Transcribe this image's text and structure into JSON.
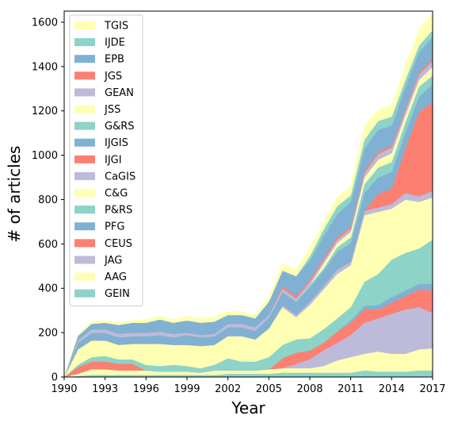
{
  "chart_data": {
    "type": "area",
    "stacked": true,
    "xlabel": "Year",
    "ylabel": "# of articles",
    "xlim": [
      1990,
      2017
    ],
    "ylim": [
      0,
      1650
    ],
    "x_ticks": [
      1990,
      1993,
      1996,
      1999,
      2002,
      2005,
      2008,
      2011,
      2014,
      2017
    ],
    "y_ticks": [
      0,
      200,
      400,
      600,
      800,
      1000,
      1200,
      1400,
      1600
    ],
    "grid": false,
    "legend_position": "top-left",
    "legend_order": [
      "TGIS",
      "IJDE",
      "EPB",
      "JGS",
      "GEAN",
      "JSS",
      "G&RS",
      "IJGIS",
      "IJGI",
      "CaGIS",
      "C&G",
      "P&RS",
      "PFG",
      "CEUS",
      "JAG",
      "AAG",
      "GEIN"
    ],
    "years": [
      1990,
      1991,
      1992,
      1993,
      1994,
      1995,
      1996,
      1997,
      1998,
      1999,
      2000,
      2001,
      2002,
      2003,
      2004,
      2005,
      2006,
      2007,
      2008,
      2009,
      2010,
      2011,
      2012,
      2013,
      2014,
      2015,
      2016,
      2017
    ],
    "series": [
      {
        "name": "GEIN",
        "color": "#8dd3c7",
        "values": [
          0,
          5,
          10,
          10,
          10,
          10,
          10,
          10,
          10,
          10,
          10,
          10,
          15,
          15,
          15,
          15,
          20,
          20,
          20,
          20,
          20,
          20,
          30,
          25,
          25,
          25,
          30,
          30
        ]
      },
      {
        "name": "AAG",
        "color": "#ffffb3",
        "values": [
          0,
          10,
          25,
          25,
          20,
          20,
          20,
          15,
          15,
          15,
          10,
          20,
          15,
          15,
          15,
          20,
          20,
          20,
          20,
          30,
          55,
          70,
          75,
          90,
          80,
          80,
          95,
          100
        ]
      },
      {
        "name": "JAG",
        "color": "#bebada",
        "values": [
          0,
          0,
          0,
          0,
          0,
          0,
          0,
          0,
          0,
          0,
          0,
          0,
          0,
          0,
          0,
          0,
          0,
          20,
          40,
          70,
          80,
          100,
          140,
          150,
          180,
          200,
          190,
          160
        ]
      },
      {
        "name": "CEUS",
        "color": "#fb8072",
        "values": [
          0,
          30,
          35,
          35,
          30,
          30,
          0,
          0,
          0,
          0,
          0,
          0,
          0,
          0,
          0,
          0,
          45,
          50,
          40,
          35,
          50,
          55,
          60,
          40,
          50,
          60,
          80,
          100
        ]
      },
      {
        "name": "PFG",
        "color": "#80b1d3",
        "values": [
          0,
          0,
          0,
          0,
          0,
          0,
          0,
          0,
          0,
          0,
          0,
          0,
          0,
          0,
          0,
          0,
          0,
          0,
          0,
          0,
          0,
          10,
          15,
          20,
          25,
          25,
          25,
          30
        ]
      },
      {
        "name": "P&RS",
        "color": "#8dd3c7",
        "values": [
          0,
          10,
          20,
          25,
          20,
          20,
          25,
          25,
          30,
          25,
          20,
          25,
          55,
          40,
          40,
          55,
          60,
          60,
          55,
          60,
          60,
          60,
          110,
          140,
          170,
          170,
          160,
          200
        ]
      },
      {
        "name": "C&G",
        "color": "#ffffb3",
        "values": [
          0,
          70,
          75,
          70,
          65,
          70,
          95,
          100,
          90,
          95,
          100,
          90,
          100,
          115,
          100,
          130,
          170,
          100,
          150,
          180,
          200,
          190,
          300,
          280,
          230,
          240,
          210,
          190
        ]
      },
      {
        "name": "CaGIS",
        "color": "#bebada",
        "values": [
          0,
          0,
          0,
          0,
          0,
          0,
          0,
          0,
          0,
          0,
          0,
          0,
          0,
          0,
          0,
          0,
          10,
          10,
          15,
          15,
          20,
          15,
          20,
          20,
          20,
          30,
          25,
          30
        ]
      },
      {
        "name": "IJGI",
        "color": "#fb8072",
        "values": [
          0,
          0,
          0,
          0,
          0,
          0,
          0,
          0,
          0,
          0,
          0,
          0,
          0,
          0,
          0,
          0,
          0,
          0,
          0,
          0,
          0,
          0,
          0,
          60,
          70,
          200,
          380,
          400
        ]
      },
      {
        "name": "IJGIS",
        "color": "#80b1d3",
        "values": [
          0,
          30,
          35,
          35,
          35,
          35,
          35,
          40,
          35,
          45,
          40,
          40,
          40,
          40,
          40,
          50,
          60,
          60,
          65,
          70,
          80,
          85,
          80,
          75,
          75,
          75,
          70,
          80
        ]
      },
      {
        "name": "G&RS",
        "color": "#8dd3c7",
        "values": [
          0,
          0,
          0,
          0,
          0,
          0,
          0,
          0,
          0,
          0,
          0,
          0,
          0,
          0,
          0,
          0,
          0,
          0,
          10,
          10,
          20,
          25,
          40,
          45,
          45,
          45,
          45,
          40
        ]
      },
      {
        "name": "JSS",
        "color": "#ffffb3",
        "values": [
          0,
          0,
          0,
          0,
          0,
          0,
          0,
          0,
          0,
          0,
          0,
          0,
          0,
          0,
          0,
          0,
          0,
          0,
          0,
          20,
          20,
          25,
          30,
          35,
          40,
          30,
          30,
          40
        ]
      },
      {
        "name": "GEAN",
        "color": "#bebada",
        "values": [
          0,
          10,
          15,
          15,
          15,
          15,
          15,
          15,
          15,
          10,
          10,
          10,
          15,
          15,
          15,
          10,
          15,
          15,
          15,
          15,
          15,
          15,
          20,
          25,
          25,
          20,
          25,
          25
        ]
      },
      {
        "name": "JGS",
        "color": "#fb8072",
        "values": [
          0,
          0,
          0,
          0,
          0,
          0,
          0,
          0,
          0,
          0,
          0,
          0,
          0,
          0,
          0,
          0,
          10,
          10,
          10,
          10,
          10,
          10,
          10,
          10,
          10,
          10,
          10,
          10
        ]
      },
      {
        "name": "EPB",
        "color": "#80b1d3",
        "values": [
          0,
          20,
          25,
          30,
          40,
          45,
          45,
          55,
          50,
          55,
          55,
          55,
          40,
          40,
          40,
          60,
          70,
          90,
          85,
          100,
          105,
          110,
          100,
          100,
          90,
          100,
          90,
          100
        ]
      },
      {
        "name": "IJDE",
        "color": "#8dd3c7",
        "values": [
          0,
          0,
          0,
          0,
          0,
          0,
          0,
          0,
          0,
          0,
          0,
          0,
          0,
          0,
          0,
          0,
          0,
          0,
          20,
          30,
          35,
          30,
          40,
          40,
          40,
          30,
          30,
          30
        ]
      },
      {
        "name": "TGIS",
        "color": "#ffffb3",
        "values": [
          0,
          5,
          10,
          10,
          10,
          10,
          15,
          15,
          15,
          20,
          20,
          20,
          15,
          15,
          15,
          20,
          30,
          30,
          35,
          30,
          40,
          40,
          60,
          50,
          50,
          60,
          70,
          75
        ]
      }
    ]
  }
}
